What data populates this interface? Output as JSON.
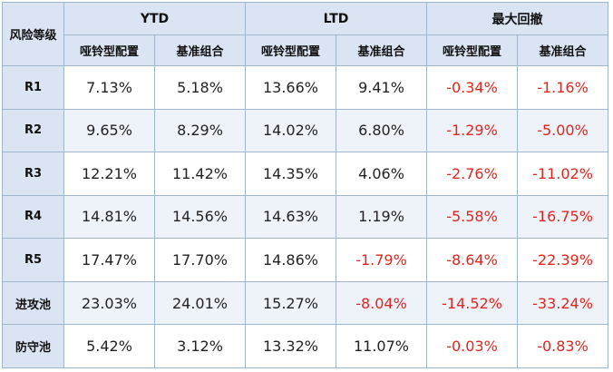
{
  "table": {
    "corner_label": "风险等级",
    "groups": [
      "YTD",
      "LTD",
      "最大回撤"
    ],
    "subheaders": [
      "哑铃型配置",
      "基准组合",
      "哑铃型配置",
      "基准组合",
      "哑铃型配置",
      "基准组合"
    ],
    "rows": [
      {
        "level": "R1",
        "values": [
          "7.13%",
          "5.18%",
          "13.66%",
          "9.41%",
          "-0.34%",
          "-1.16%"
        ]
      },
      {
        "level": "R2",
        "values": [
          "9.65%",
          "8.29%",
          "14.02%",
          "6.80%",
          "-1.29%",
          "-5.00%"
        ]
      },
      {
        "level": "R3",
        "values": [
          "12.21%",
          "11.42%",
          "14.35%",
          "4.06%",
          "-2.76%",
          "-11.02%"
        ]
      },
      {
        "level": "R4",
        "values": [
          "14.81%",
          "14.56%",
          "14.63%",
          "1.19%",
          "-5.58%",
          "-16.75%"
        ]
      },
      {
        "level": "R5",
        "values": [
          "17.47%",
          "17.70%",
          "14.86%",
          "-1.79%",
          "-8.64%",
          "-22.39%"
        ]
      },
      {
        "level": "进攻池",
        "values": [
          "23.03%",
          "24.01%",
          "15.27%",
          "-8.04%",
          "-14.52%",
          "-33.24%"
        ]
      },
      {
        "level": "防守池",
        "values": [
          "5.42%",
          "3.12%",
          "13.32%",
          "11.07%",
          "-0.03%",
          "-0.83%"
        ]
      }
    ]
  },
  "colors": {
    "header_bg": "#dae4f2",
    "alt_row_bg": "#eef2f9",
    "border": "#9fb6cd",
    "negative": "#e0261f",
    "text": "#222222"
  }
}
